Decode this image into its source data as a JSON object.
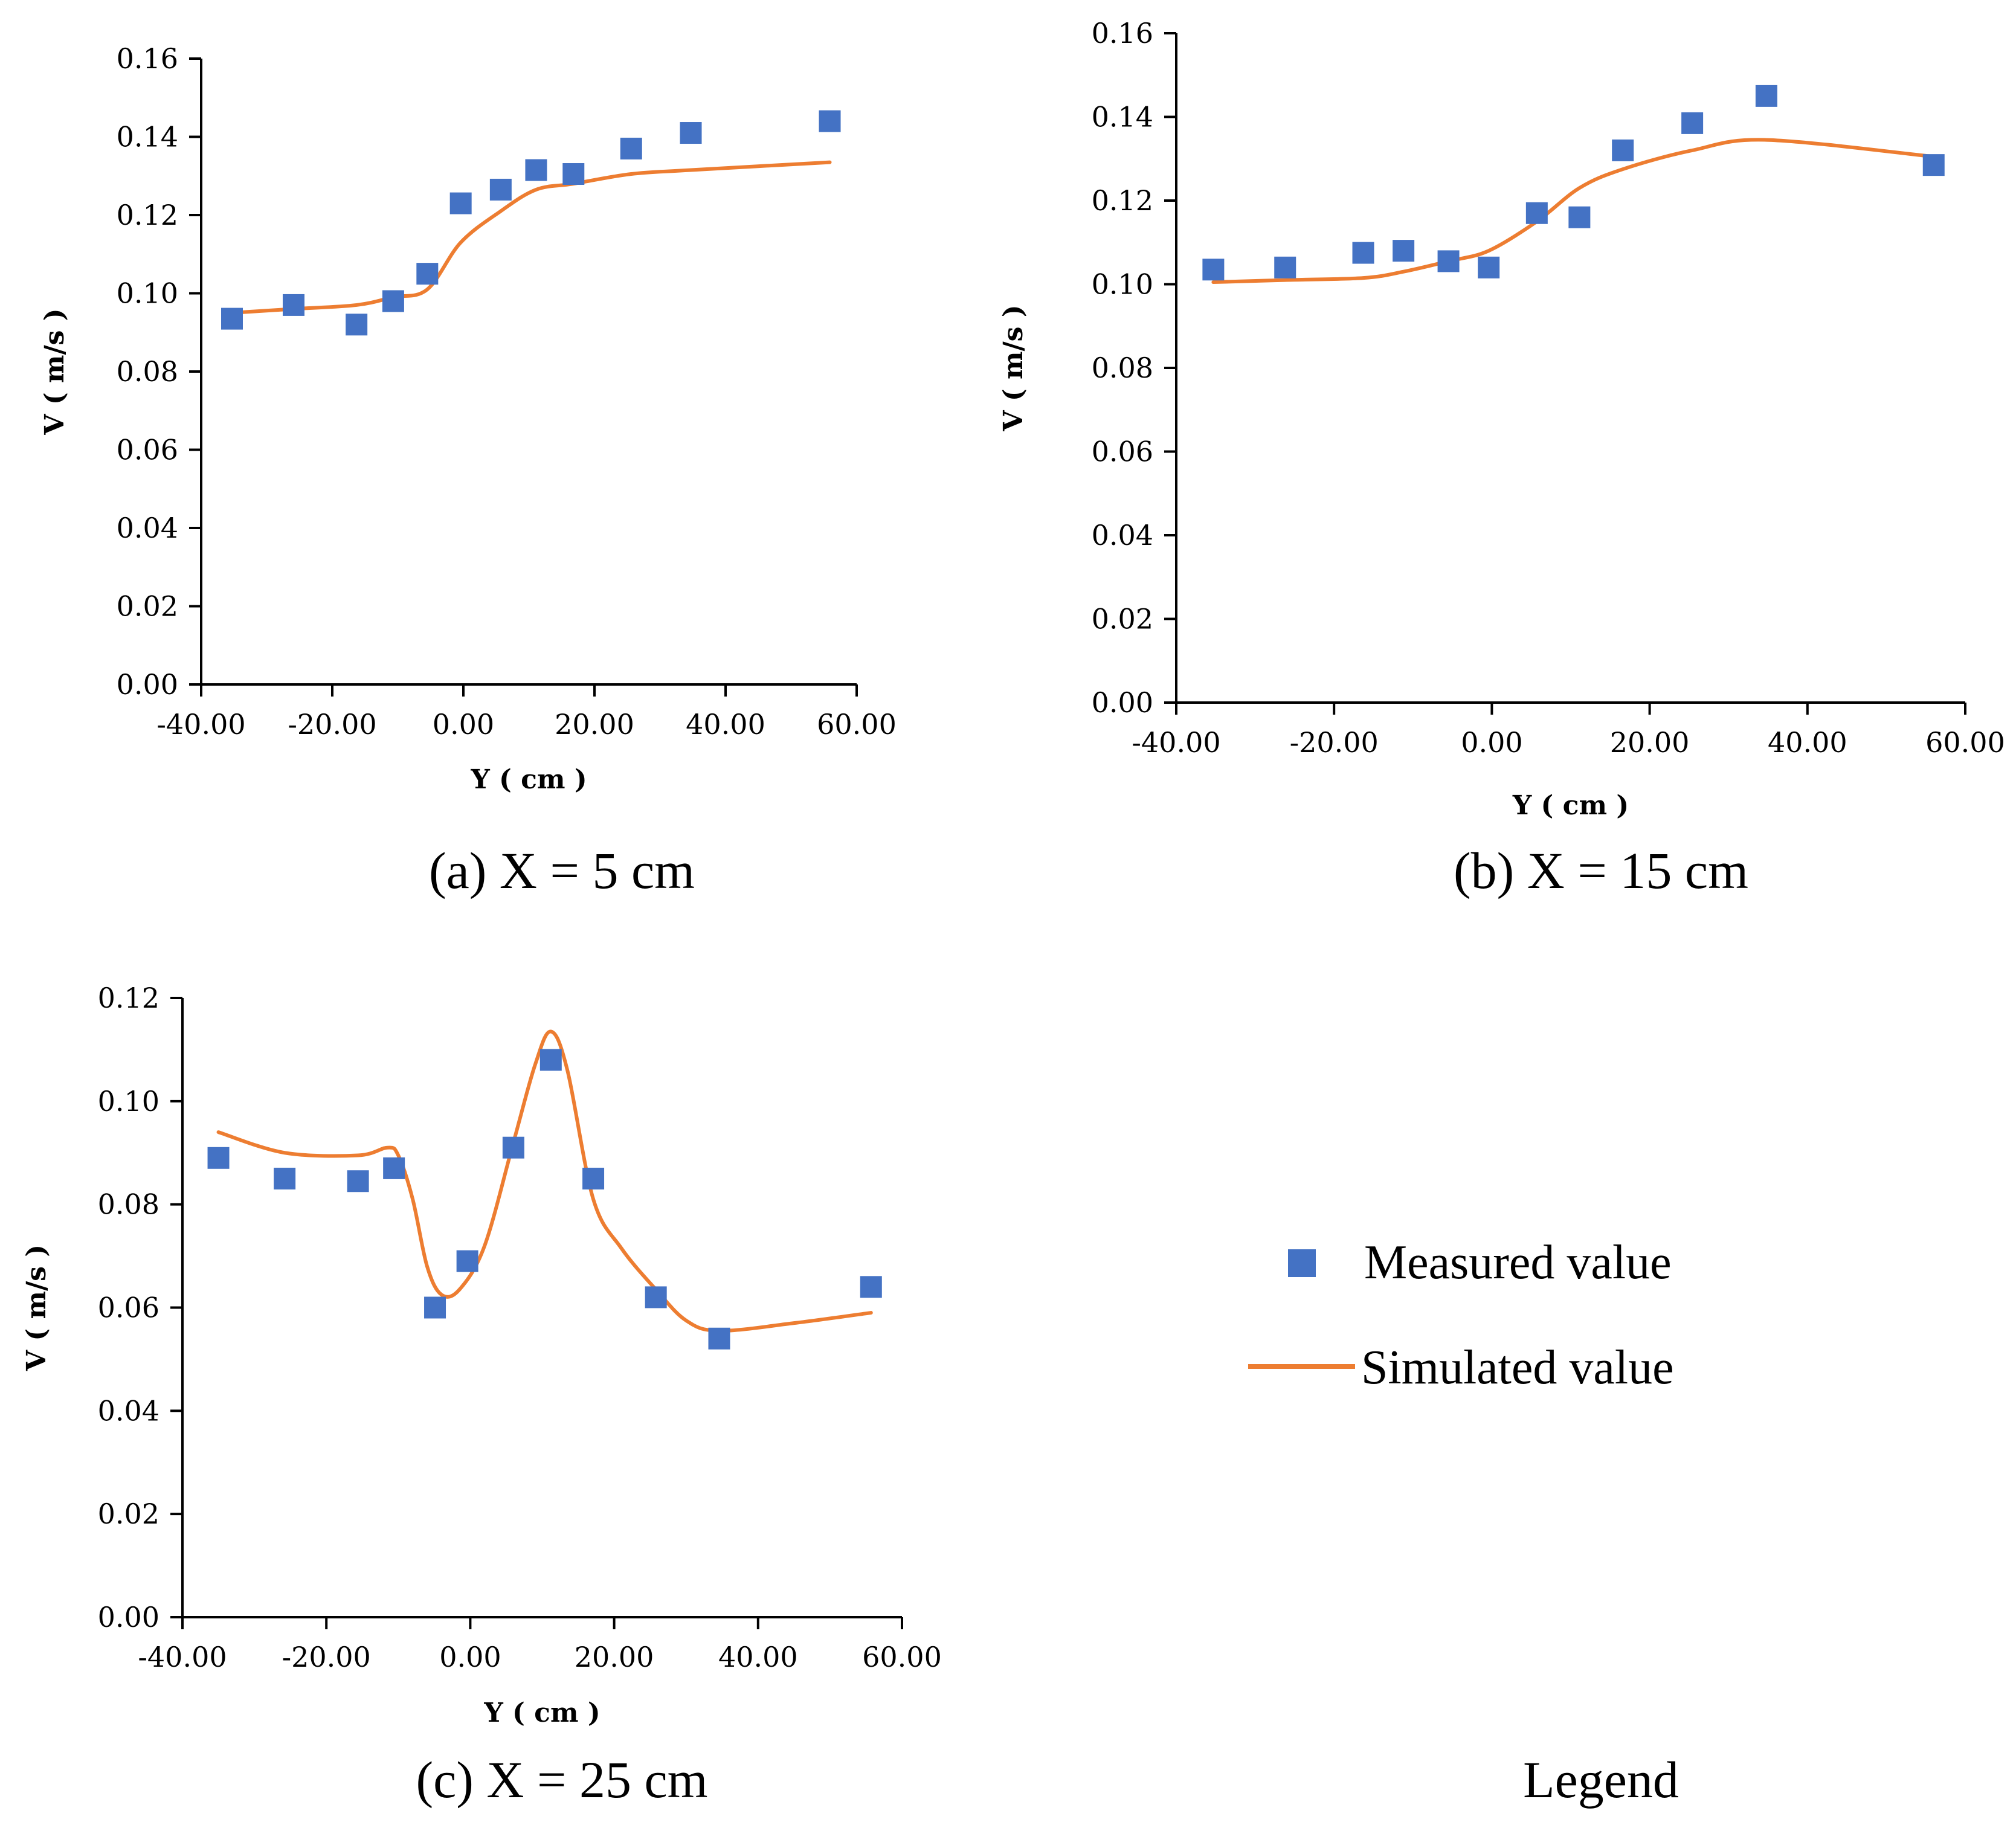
{
  "colors": {
    "measured": "#4472C4",
    "simulated": "#ED7D31",
    "axis": "#000000"
  },
  "chart_data": [
    {
      "id": "a",
      "type": "scatter+line",
      "caption": "(a) X = 5 cm",
      "xlabel": "Y ( cm )",
      "ylabel": "V ( m/s )",
      "xlim": [
        -40,
        60
      ],
      "ylim": [
        0,
        0.16
      ],
      "xticks": [
        -40,
        -20,
        0,
        20,
        40,
        60
      ],
      "xtick_labels": [
        "-40.00",
        "-20.00",
        "0.00",
        "20.00",
        "40.00",
        "60.00"
      ],
      "yticks": [
        0,
        0.02,
        0.04,
        0.06,
        0.08,
        0.1,
        0.12,
        0.14,
        0.16
      ],
      "ytick_labels": [
        "0.00",
        "0.02",
        "0.04",
        "0.06",
        "0.08",
        "0.10",
        "0.12",
        "0.14",
        "0.16"
      ],
      "series": [
        {
          "name": "Measured value",
          "kind": "scatter",
          "x": [
            -35.3,
            -25.9,
            -16.3,
            -10.7,
            -5.5,
            -0.4,
            5.7,
            11.1,
            16.8,
            25.6,
            34.7,
            55.9
          ],
          "y": [
            0.0935,
            0.097,
            0.092,
            0.098,
            0.105,
            0.123,
            0.1265,
            0.1315,
            0.1305,
            0.137,
            0.141,
            0.144
          ]
        },
        {
          "name": "Simulated value",
          "kind": "line",
          "x": [
            -35.3,
            -25.9,
            -16.3,
            -10.7,
            -5.5,
            -0.4,
            5.7,
            11.1,
            16.8,
            25.6,
            34.7,
            55.9
          ],
          "y": [
            0.095,
            0.096,
            0.097,
            0.099,
            0.101,
            0.113,
            0.121,
            0.1265,
            0.128,
            0.1305,
            0.1315,
            0.1335
          ]
        }
      ]
    },
    {
      "id": "b",
      "type": "scatter+line",
      "caption": "(b) X = 15 cm",
      "xlabel": "Y ( cm )",
      "ylabel": "V ( m/s )",
      "xlim": [
        -40,
        60
      ],
      "ylim": [
        0,
        0.16
      ],
      "xticks": [
        -40,
        -20,
        0,
        20,
        40,
        60
      ],
      "xtick_labels": [
        "-40.00",
        "-20.00",
        "0.00",
        "20.00",
        "40.00",
        "60.00"
      ],
      "yticks": [
        0,
        0.02,
        0.04,
        0.06,
        0.08,
        0.1,
        0.12,
        0.14,
        0.16
      ],
      "ytick_labels": [
        "0.00",
        "0.02",
        "0.04",
        "0.06",
        "0.08",
        "0.10",
        "0.12",
        "0.14",
        "0.16"
      ],
      "series": [
        {
          "name": "Measured value",
          "kind": "scatter",
          "x": [
            -35.3,
            -26.2,
            -16.3,
            -11.2,
            -5.5,
            -0.4,
            5.7,
            11.1,
            16.6,
            25.4,
            34.8,
            56.0
          ],
          "y": [
            0.1035,
            0.104,
            0.1075,
            0.108,
            0.1055,
            0.104,
            0.117,
            0.116,
            0.132,
            0.1385,
            0.145,
            0.1285
          ]
        },
        {
          "name": "Simulated value",
          "kind": "line",
          "x": [
            -35.3,
            -26.2,
            -16.3,
            -11.2,
            -5.5,
            -0.4,
            5.7,
            11.1,
            16.6,
            25.4,
            34.8,
            56.0
          ],
          "y": [
            0.1005,
            0.101,
            0.1015,
            0.103,
            0.1055,
            0.108,
            0.115,
            0.123,
            0.1275,
            0.132,
            0.1345,
            0.1305
          ]
        }
      ]
    },
    {
      "id": "c",
      "type": "scatter+line",
      "caption": "(c) X = 25 cm",
      "xlabel": "Y ( cm )",
      "ylabel": "V ( m/s )",
      "xlim": [
        -40,
        60
      ],
      "ylim": [
        0,
        0.12
      ],
      "xticks": [
        -40,
        -20,
        0,
        20,
        40,
        60
      ],
      "xtick_labels": [
        "-40.00",
        "-20.00",
        "0.00",
        "20.00",
        "40.00",
        "60.00"
      ],
      "yticks": [
        0,
        0.02,
        0.04,
        0.06,
        0.08,
        0.1,
        0.12
      ],
      "ytick_labels": [
        "0.00",
        "0.02",
        "0.04",
        "0.06",
        "0.08",
        "0.10",
        "0.12"
      ],
      "series": [
        {
          "name": "Measured value",
          "kind": "scatter",
          "x": [
            -35.0,
            -25.8,
            -15.6,
            -10.6,
            -4.9,
            -0.4,
            6.0,
            11.2,
            17.1,
            25.8,
            34.6,
            55.7
          ],
          "y": [
            0.089,
            0.085,
            0.0845,
            0.087,
            0.06,
            0.069,
            0.091,
            0.108,
            0.085,
            0.062,
            0.054,
            0.064
          ]
        },
        {
          "name": "Simulated value",
          "kind": "line",
          "x": [
            -35.0,
            -25.8,
            -15.6,
            -11.5,
            -10.0,
            -8.0,
            -6.0,
            -4.0,
            -1.5,
            2.0,
            6.0,
            9.0,
            11.2,
            13.5,
            17.1,
            21.0,
            25.8,
            30.0,
            34.6,
            45.0,
            55.7
          ],
          "y": [
            0.094,
            0.09,
            0.0895,
            0.091,
            0.0895,
            0.081,
            0.068,
            0.0625,
            0.0635,
            0.072,
            0.092,
            0.107,
            0.1135,
            0.106,
            0.081,
            0.0715,
            0.0635,
            0.0575,
            0.0555,
            0.057,
            0.059
          ]
        }
      ]
    }
  ],
  "legend": {
    "title": "Legend",
    "items": [
      {
        "label": "Measured value",
        "marker": "square"
      },
      {
        "label": "Simulated value",
        "marker": "line"
      }
    ]
  }
}
